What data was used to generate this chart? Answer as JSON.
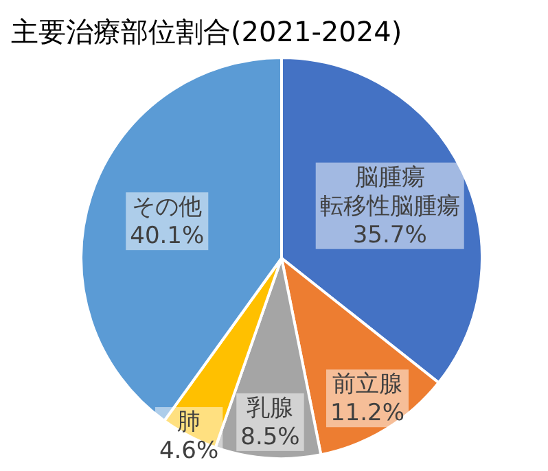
{
  "chart_data": {
    "type": "pie",
    "title": "主要治療部位割合(2021-2024)",
    "categories": [
      "脳腫瘍転移性脳腫瘍",
      "前立腺",
      "乳腺",
      "肺",
      "その他"
    ],
    "values": [
      35.7,
      11.2,
      8.5,
      4.6,
      40.1
    ],
    "value_labels": [
      "35.7%",
      "11.2%",
      "8.5%",
      "4.6%",
      "40.1%"
    ],
    "colors": [
      "#4472c4",
      "#ed7d31",
      "#a5a5a5",
      "#ffc000",
      "#5b9bd5"
    ]
  }
}
